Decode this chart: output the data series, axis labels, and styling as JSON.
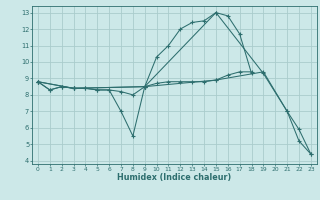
{
  "xlabel": "Humidex (Indice chaleur)",
  "bg_color": "#cce8e8",
  "grid_color": "#aacccc",
  "line_color": "#2d6e6e",
  "xlim": [
    -0.5,
    23.5
  ],
  "ylim": [
    3.8,
    13.4
  ],
  "xticks": [
    0,
    1,
    2,
    3,
    4,
    5,
    6,
    7,
    8,
    9,
    10,
    11,
    12,
    13,
    14,
    15,
    16,
    17,
    18,
    19,
    20,
    21,
    22,
    23
  ],
  "yticks": [
    4,
    5,
    6,
    7,
    8,
    9,
    10,
    11,
    12,
    13
  ],
  "line1_x": [
    0,
    1,
    2,
    3,
    4,
    5,
    6,
    7,
    8,
    9,
    10,
    11,
    12,
    13,
    14,
    15,
    16,
    17,
    18
  ],
  "line1_y": [
    8.8,
    8.3,
    8.5,
    8.4,
    8.4,
    8.3,
    8.3,
    7.0,
    5.5,
    8.5,
    10.3,
    11.0,
    12.0,
    12.4,
    12.5,
    13.0,
    12.8,
    11.7,
    9.3
  ],
  "line2_x": [
    0,
    1,
    2,
    3,
    4,
    5,
    6,
    7,
    8,
    9,
    10,
    11,
    12,
    13,
    14,
    15,
    16,
    17,
    18
  ],
  "line2_y": [
    8.8,
    8.3,
    8.5,
    8.4,
    8.4,
    8.3,
    8.3,
    8.2,
    8.0,
    8.5,
    8.7,
    8.8,
    8.8,
    8.8,
    8.8,
    8.9,
    9.2,
    9.4,
    9.4
  ],
  "line3_x": [
    0,
    3,
    9,
    15,
    19,
    21,
    22,
    23
  ],
  "line3_y": [
    8.8,
    8.4,
    8.5,
    13.0,
    9.3,
    7.0,
    5.2,
    4.4
  ],
  "line4_x": [
    0,
    3,
    9,
    15,
    19,
    21,
    22,
    23
  ],
  "line4_y": [
    8.8,
    8.4,
    8.5,
    8.9,
    9.4,
    7.0,
    5.9,
    4.4
  ]
}
